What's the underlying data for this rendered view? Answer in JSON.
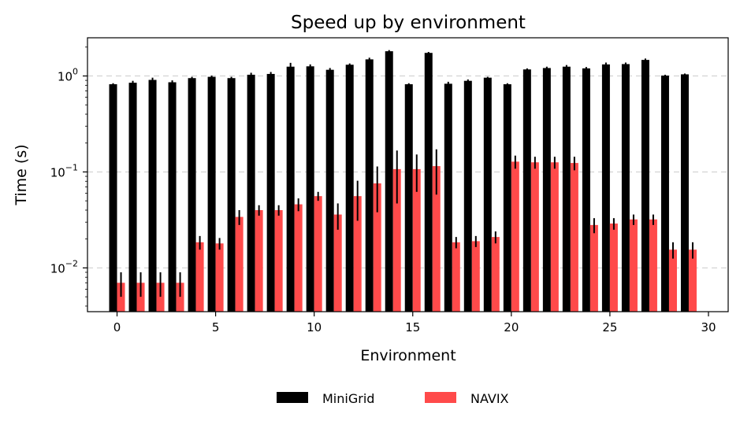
{
  "chart_data": {
    "type": "bar",
    "title": "Speed up by environment",
    "xlabel": "Environment",
    "ylabel": "Time (s)",
    "yscale": "log",
    "ylim": [
      0.0035,
      2.5
    ],
    "xlim": [
      -1.5,
      31
    ],
    "xticks": [
      "0",
      "5",
      "10",
      "15",
      "20",
      "25",
      "30"
    ],
    "yticks": [
      {
        "base": "10",
        "exp": "0",
        "value": 1
      },
      {
        "base": "10",
        "exp": "−1",
        "value": 0.1
      },
      {
        "base": "10",
        "exp": "−2",
        "value": 0.01
      }
    ],
    "grid": "horizontal-dashed",
    "legend": "bottom-center",
    "x": [
      0,
      1,
      2,
      3,
      4,
      5,
      6,
      7,
      8,
      9,
      10,
      11,
      12,
      13,
      14,
      15,
      16,
      17,
      18,
      19,
      20,
      21,
      22,
      23,
      24,
      25,
      26,
      27,
      28,
      29
    ],
    "series": [
      {
        "name": "MiniGrid",
        "color": "#000000",
        "values": [
          0.82,
          0.85,
          0.91,
          0.86,
          0.95,
          0.98,
          0.95,
          1.03,
          1.05,
          1.25,
          1.26,
          1.16,
          1.31,
          1.49,
          1.81,
          0.82,
          1.74,
          0.83,
          0.89,
          0.96,
          0.82,
          1.17,
          1.21,
          1.25,
          1.2,
          1.32,
          1.33,
          1.47,
          1.01,
          1.04
        ],
        "errors": [
          0.02,
          0.04,
          0.05,
          0.04,
          0.03,
          0.03,
          0.03,
          0.05,
          0.05,
          0.12,
          0.06,
          0.05,
          0.04,
          0.06,
          0.05,
          0.02,
          0.04,
          0.04,
          0.03,
          0.02,
          0.02,
          0.03,
          0.04,
          0.05,
          0.04,
          0.06,
          0.05,
          0.05,
          0.02,
          0.02
        ]
      },
      {
        "name": "NAVIX",
        "color": "#ff4a4a",
        "values": [
          0.007,
          0.007,
          0.007,
          0.007,
          0.0185,
          0.018,
          0.034,
          0.04,
          0.04,
          0.046,
          0.056,
          0.036,
          0.056,
          0.076,
          0.107,
          0.107,
          0.115,
          0.0185,
          0.019,
          0.021,
          0.128,
          0.126,
          0.126,
          0.124,
          0.028,
          0.029,
          0.032,
          0.032,
          0.0155,
          0.0155
        ],
        "errors": [
          0.002,
          0.002,
          0.002,
          0.002,
          0.003,
          0.0025,
          0.006,
          0.005,
          0.005,
          0.007,
          0.006,
          0.011,
          0.025,
          0.038,
          0.06,
          0.045,
          0.057,
          0.0025,
          0.0025,
          0.003,
          0.02,
          0.018,
          0.018,
          0.02,
          0.005,
          0.004,
          0.004,
          0.004,
          0.003,
          0.003
        ]
      }
    ]
  }
}
